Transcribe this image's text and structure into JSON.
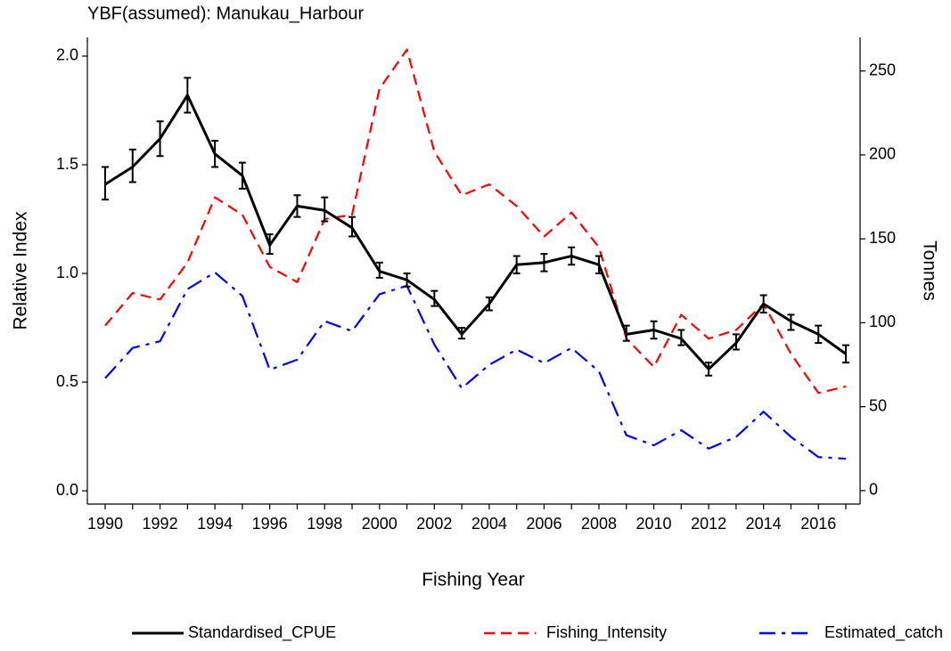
{
  "chart_data": {
    "type": "line",
    "title": "YBF(assumed): Manukau_Harbour",
    "xlabel": "Fishing Year",
    "ylabel": "Relative Index",
    "y2label": "Tonnes",
    "x": [
      1990,
      1991,
      1992,
      1993,
      1994,
      1995,
      1996,
      1997,
      1998,
      1999,
      2000,
      2001,
      2002,
      2003,
      2004,
      2005,
      2006,
      2007,
      2008,
      2009,
      2010,
      2011,
      2012,
      2013,
      2014,
      2015,
      2016,
      2017
    ],
    "xlim": [
      1989.35,
      2017.52
    ],
    "xticks": [
      1990,
      1992,
      1994,
      1996,
      1998,
      2000,
      2002,
      2004,
      2006,
      2008,
      2010,
      2012,
      2014,
      2016
    ],
    "ylim": [
      -0.061,
      2.086
    ],
    "yticks": [
      {
        "value": 0,
        "label": "0.0"
      },
      {
        "value": 0.5,
        "label": "0.5"
      },
      {
        "value": 1,
        "label": "1.0"
      },
      {
        "value": 1.5,
        "label": "1.5"
      },
      {
        "value": 2,
        "label": "2.0"
      }
    ],
    "y2lim": [
      -8,
      270
    ],
    "y2ticks": [
      0,
      50,
      100,
      150,
      200,
      250
    ],
    "series": [
      {
        "name": "Standardised_CPUE",
        "color": "#000000",
        "dash": "solid",
        "values": [
          1.41,
          1.49,
          1.62,
          1.82,
          1.55,
          1.45,
          1.13,
          1.31,
          1.29,
          1.21,
          1.01,
          0.97,
          0.88,
          0.72,
          0.86,
          1.04,
          1.05,
          1.08,
          1.04,
          0.72,
          0.74,
          0.7,
          0.56,
          0.68,
          0.86,
          0.78,
          0.72,
          0.63
        ],
        "lower": [
          1.34,
          1.42,
          1.54,
          1.74,
          1.49,
          1.39,
          1.09,
          1.26,
          1.24,
          1.17,
          0.98,
          0.94,
          0.85,
          0.7,
          0.83,
          1.0,
          1.01,
          1.04,
          1.0,
          0.69,
          0.7,
          0.67,
          0.53,
          0.65,
          0.82,
          0.74,
          0.68,
          0.59
        ],
        "upper": [
          1.49,
          1.57,
          1.7,
          1.9,
          1.61,
          1.51,
          1.18,
          1.36,
          1.35,
          1.26,
          1.05,
          1.0,
          0.92,
          0.75,
          0.89,
          1.08,
          1.09,
          1.12,
          1.08,
          0.76,
          0.78,
          0.74,
          0.59,
          0.72,
          0.9,
          0.81,
          0.76,
          0.67
        ]
      },
      {
        "name": "Fishing_Intensity",
        "color": "#ff0000",
        "dash": "dashed",
        "values": [
          0.76,
          0.91,
          0.88,
          1.05,
          1.35,
          1.27,
          1.03,
          0.96,
          1.25,
          1.27,
          1.85,
          2.03,
          1.56,
          1.36,
          1.41,
          1.31,
          1.17,
          1.28,
          1.12,
          0.7,
          0.57,
          0.81,
          0.7,
          0.74,
          0.86,
          0.63,
          0.45,
          0.48
        ]
      },
      {
        "name": "Estimated_catch",
        "color": "#0000ff",
        "dash": "dashdot",
        "axis": "y2",
        "values": [
          67,
          85,
          89,
          120,
          130,
          116,
          72,
          78,
          101,
          95,
          117,
          122,
          87,
          61,
          75,
          84,
          76,
          85,
          71,
          33,
          27,
          36,
          25,
          32,
          47,
          32,
          20,
          19
        ]
      }
    ]
  }
}
